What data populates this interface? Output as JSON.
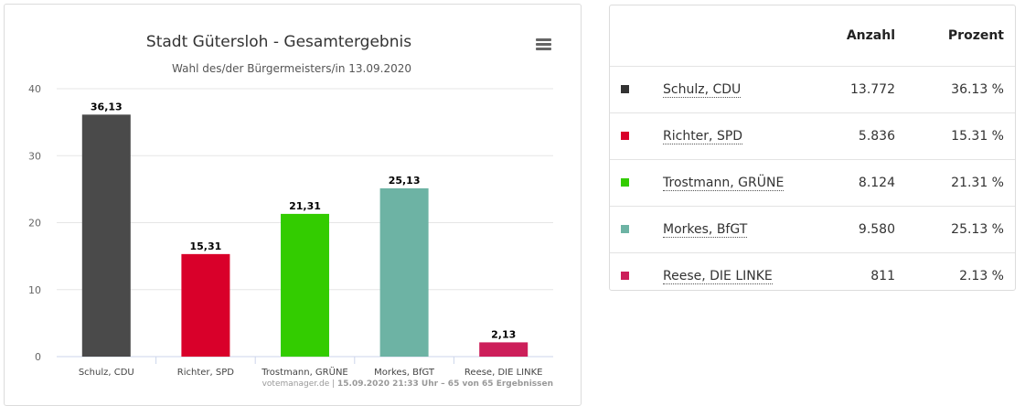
{
  "chart_data": {
    "type": "bar",
    "title": "Stadt Gütersloh - Gesamtergebnis",
    "subtitle": "Wahl des/der Bürgermeisters/in 13.09.2020",
    "categories": [
      "Schulz, CDU",
      "Richter, SPD",
      "Trostmann, GRÜNE",
      "Morkes, BfGT",
      "Reese, DIE LINKE"
    ],
    "values": [
      36.13,
      15.31,
      21.31,
      25.13,
      2.13
    ],
    "data_labels": [
      "36,13",
      "15,31",
      "21,31",
      "25,13",
      "2,13"
    ],
    "colors": [
      "#4a4a4a",
      "#d9002a",
      "#33cc00",
      "#6db3a4",
      "#cc1f5a"
    ],
    "ylim": [
      0,
      40
    ],
    "yticks": [
      0,
      10,
      20,
      30,
      40
    ],
    "grid": true,
    "xlabel": "",
    "ylabel": ""
  },
  "credits": {
    "source": "votemanager.de",
    "separator": "|",
    "info": "15.09.2020 21:33 Uhr – 65 von 65 Ergebnissen"
  },
  "menu": {
    "icon": "hamburger-menu-icon"
  },
  "table": {
    "headers": {
      "name": "",
      "count": "Anzahl",
      "percent": "Prozent"
    },
    "rows": [
      {
        "name": "Schulz, CDU",
        "count": "13.772",
        "percent": "36.13 %",
        "color": "#333333"
      },
      {
        "name": "Richter, SPD",
        "count": "5.836",
        "percent": "15.31 %",
        "color": "#d9002a"
      },
      {
        "name": "Trostmann, GRÜNE",
        "count": "8.124",
        "percent": "21.31 %",
        "color": "#33cc00"
      },
      {
        "name": "Morkes, BfGT",
        "count": "9.580",
        "percent": "25.13 %",
        "color": "#6db3a4"
      },
      {
        "name": "Reese, DIE LINKE",
        "count": "811",
        "percent": "2.13 %",
        "color": "#cc1f5a"
      }
    ]
  }
}
